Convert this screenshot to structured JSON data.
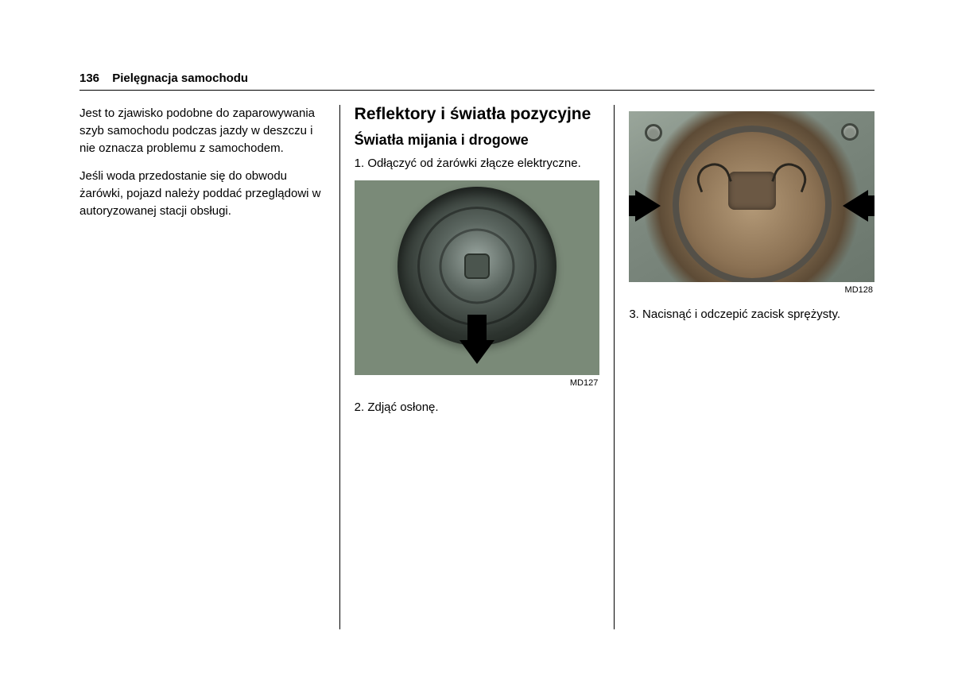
{
  "header": {
    "page_number": "136",
    "section": "Pielęgnacja samochodu"
  },
  "col1": {
    "para1": "Jest to zjawisko podobne do zaparowywania szyb samochodu podczas jazdy w deszczu i nie oznacza problemu z samochodem.",
    "para2": "Jeśli woda przedostanie się do obwodu żarówki, pojazd należy poddać przeglądowi w autoryzowanej stacji obsługi."
  },
  "col2": {
    "heading": "Reflektory i światła pozycyjne",
    "subheading": "Światła mijania i drogowe",
    "step1": "1. Odłączyć od żarówki złącze elektryczne.",
    "fig1_label": "MD127",
    "step2": "2. Zdjąć osłonę."
  },
  "col3": {
    "fig2_label": "MD128",
    "step3": "3. Nacisnąć i odczepić zacisk sprężysty."
  }
}
